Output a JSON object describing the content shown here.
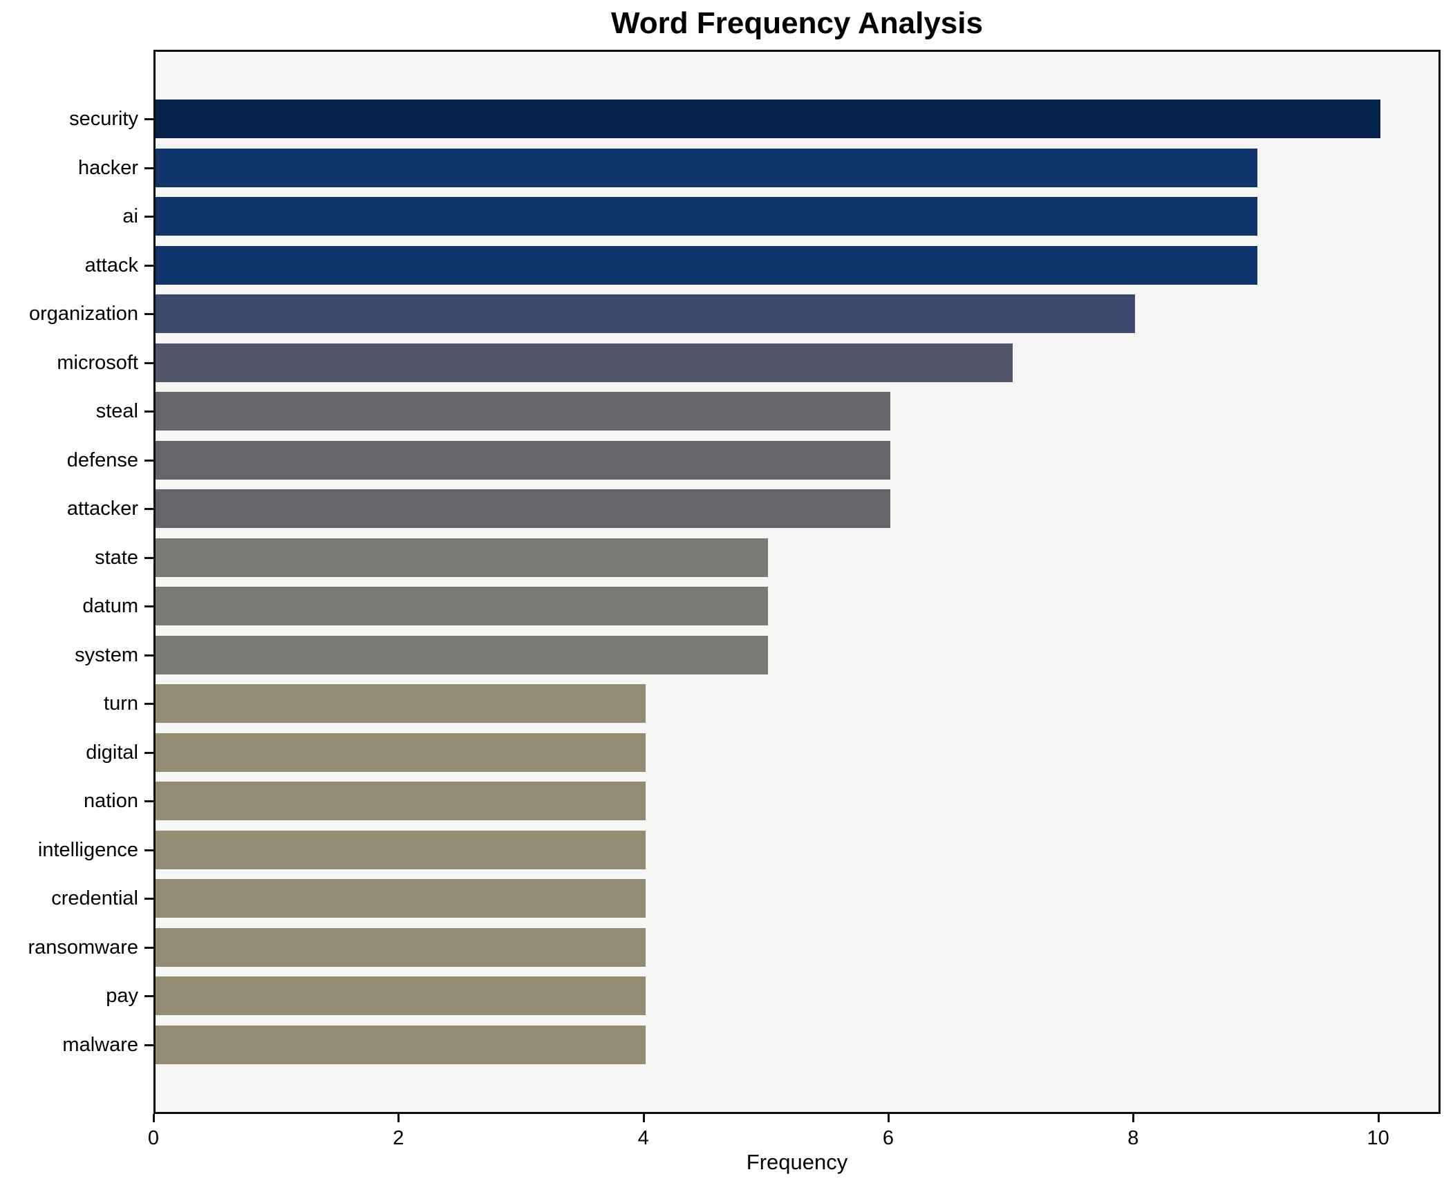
{
  "chart_data": {
    "type": "bar",
    "orientation": "horizontal",
    "title": "Word Frequency Analysis",
    "xlabel": "Frequency",
    "ylabel": "",
    "categories": [
      "security",
      "hacker",
      "ai",
      "attack",
      "organization",
      "microsoft",
      "steal",
      "defense",
      "attacker",
      "state",
      "datum",
      "system",
      "turn",
      "digital",
      "nation",
      "intelligence",
      "credential",
      "ransomware",
      "pay",
      "malware"
    ],
    "values": [
      10,
      9,
      9,
      9,
      8,
      7,
      6,
      6,
      6,
      5,
      5,
      5,
      4,
      4,
      4,
      4,
      4,
      4,
      4,
      4
    ],
    "bar_colors": [
      "#04224c",
      "#10356c",
      "#10356c",
      "#10356c",
      "#3b4a6e",
      "#50556a",
      "#64666c",
      "#64666c",
      "#64666c",
      "#7b7a75",
      "#7b7a75",
      "#7b7a75",
      "#938c72",
      "#938c72",
      "#938c72",
      "#938c72",
      "#938c72",
      "#938c72",
      "#938c72",
      "#938c72"
    ],
    "xlim": [
      0,
      10.51
    ],
    "xticks": [
      0,
      2,
      4,
      6,
      8,
      10
    ],
    "grid": false,
    "legend": null,
    "colors": {
      "figure_bg": "#ffffff",
      "plot_bg": "#f6f6f4",
      "spine": "#0f0f0f",
      "text": "#000000"
    }
  }
}
